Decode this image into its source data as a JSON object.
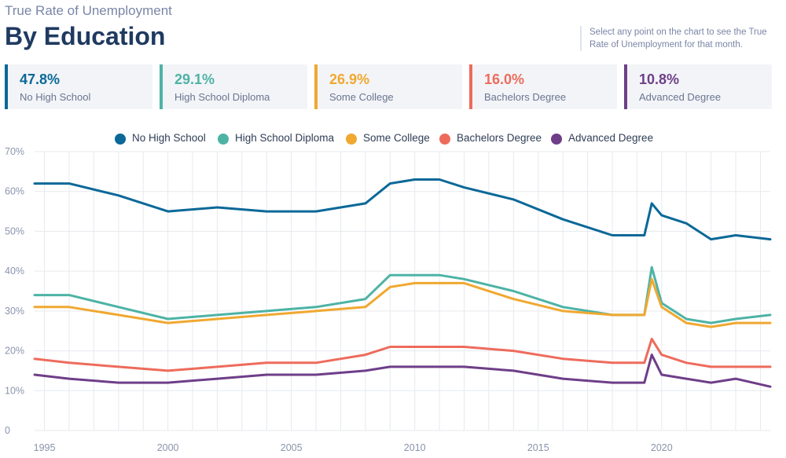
{
  "header": {
    "kicker": "True Rate of Unemployment",
    "title": "By Education",
    "hint": "Select any point on the chart to see the True Rate of Unemployment for that month."
  },
  "cards": [
    {
      "value": "47.8%",
      "label": "No High School",
      "color": "#0b6898"
    },
    {
      "value": "29.1%",
      "label": "High School Diploma",
      "color": "#4db3a5"
    },
    {
      "value": "26.9%",
      "label": "Some College",
      "color": "#f0a830"
    },
    {
      "value": "16.0%",
      "label": "Bachelors Degree",
      "color": "#ee6b5c"
    },
    {
      "value": "10.8%",
      "label": "Advanced Degree",
      "color": "#6e3e88"
    }
  ],
  "chart_data": {
    "type": "line",
    "title": "",
    "xlabel": "",
    "ylabel": "",
    "x_ticks": [
      "1995",
      "2000",
      "2005",
      "2010",
      "2015",
      "2020"
    ],
    "y_ticks": [
      "0",
      "10%",
      "20%",
      "30%",
      "40%",
      "50%",
      "60%",
      "70%"
    ],
    "xlim": [
      1994.6,
      2024.4
    ],
    "ylim": [
      0,
      70
    ],
    "grid": true,
    "legend_position": "top",
    "x": [
      1994.6,
      1996,
      1998,
      2000,
      2002,
      2004,
      2006,
      2008,
      2009,
      2010,
      2011,
      2012,
      2014,
      2016,
      2018,
      2019.3,
      2019.6,
      2020,
      2021,
      2022,
      2023,
      2024.4
    ],
    "series": [
      {
        "name": "No High School",
        "color": "#0b6898",
        "values": [
          62,
          62,
          59,
          55,
          56,
          55,
          55,
          57,
          62,
          63,
          63,
          61,
          58,
          53,
          49,
          49,
          57,
          54,
          52,
          48,
          49,
          48
        ]
      },
      {
        "name": "High School Diploma",
        "color": "#4db3a5",
        "values": [
          34,
          34,
          31,
          28,
          29,
          30,
          31,
          33,
          39,
          39,
          39,
          38,
          35,
          31,
          29,
          29,
          41,
          32,
          28,
          27,
          28,
          29
        ]
      },
      {
        "name": "Some College",
        "color": "#f0a830",
        "values": [
          31,
          31,
          29,
          27,
          28,
          29,
          30,
          31,
          36,
          37,
          37,
          37,
          33,
          30,
          29,
          29,
          38,
          31,
          27,
          26,
          27,
          27
        ]
      },
      {
        "name": "Bachelors Degree",
        "color": "#ee6b5c",
        "values": [
          18,
          17,
          16,
          15,
          16,
          17,
          17,
          19,
          21,
          21,
          21,
          21,
          20,
          18,
          17,
          17,
          23,
          19,
          17,
          16,
          16,
          16
        ]
      },
      {
        "name": "Advanced Degree",
        "color": "#6e3e88",
        "values": [
          14,
          13,
          12,
          12,
          13,
          14,
          14,
          15,
          16,
          16,
          16,
          16,
          15,
          13,
          12,
          12,
          19,
          14,
          13,
          12,
          13,
          11
        ]
      }
    ]
  }
}
